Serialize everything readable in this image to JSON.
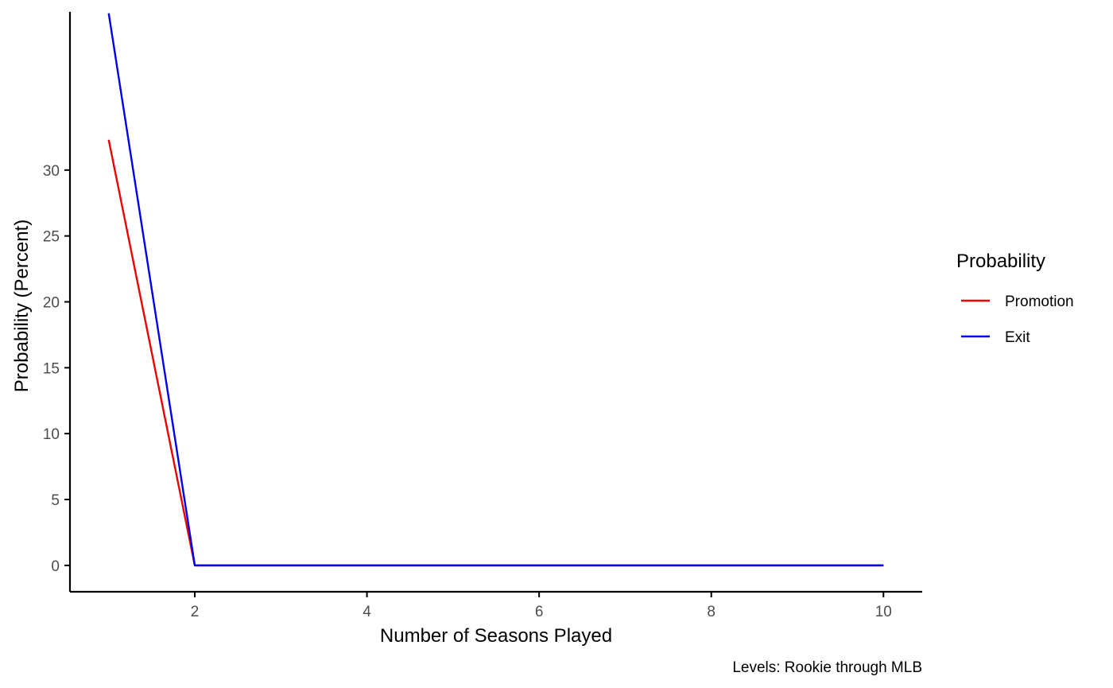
{
  "chart_data": {
    "type": "line",
    "title": "",
    "xlabel": "Number of Seasons Played",
    "ylabel": "Probability (Percent)",
    "caption": "Levels: Rookie through MLB",
    "xlim": [
      0.55,
      10.45
    ],
    "ylim": [
      -2,
      42
    ],
    "x_ticks": [
      2,
      4,
      6,
      8,
      10
    ],
    "y_ticks": [
      0,
      5,
      10,
      15,
      20,
      25,
      30
    ],
    "grid": false,
    "legend": {
      "title": "Probability",
      "position": "right"
    },
    "series": [
      {
        "name": "Promotion",
        "color": "#ee0000",
        "x": [
          1,
          2,
          3,
          4,
          5,
          6,
          7,
          8,
          9,
          10
        ],
        "y": [
          32.3,
          0,
          0,
          0,
          0,
          0,
          0,
          0,
          0,
          0
        ]
      },
      {
        "name": "Exit",
        "color": "#0000ee",
        "x": [
          1,
          2,
          3,
          4,
          5,
          6,
          7,
          8,
          9,
          10
        ],
        "y": [
          41.9,
          0,
          0,
          0,
          0,
          0,
          0,
          0,
          0,
          0
        ]
      }
    ]
  }
}
